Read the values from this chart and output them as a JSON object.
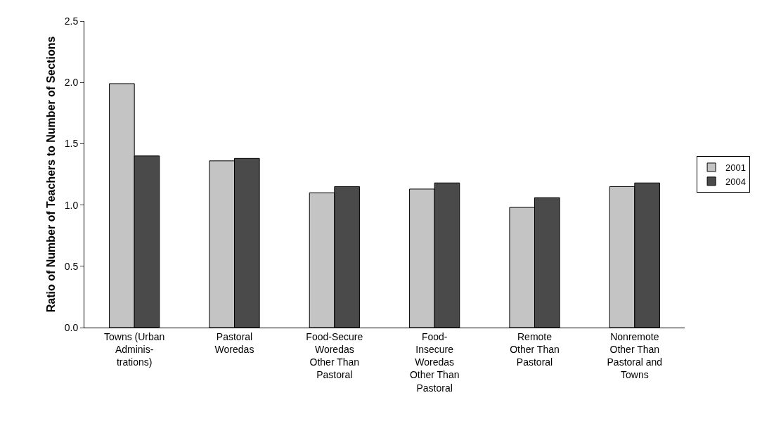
{
  "chart_data": {
    "type": "bar",
    "ylabel": "Ratio of Number of Teachers to Number of Sections",
    "categories": [
      "Towns (Urban\nAdminis-\ntrations)",
      "Pastoral\nWoredas",
      "Food-Secure\nWoredas\nOther Than\nPastoral",
      "Food-\nInsecure\nWoredas\nOther Than\nPastoral",
      "Remote\nOther Than\nPastoral",
      "Nonremote\nOther Than\nPastoral and\nTowns"
    ],
    "series": [
      {
        "name": "2001",
        "color": "#c4c4c4",
        "values": [
          1.99,
          1.36,
          1.1,
          1.13,
          0.98,
          1.15
        ]
      },
      {
        "name": "2004",
        "color": "#4a4a4a",
        "values": [
          1.4,
          1.38,
          1.15,
          1.18,
          1.06,
          1.18
        ]
      }
    ],
    "ylim": [
      0,
      2.5
    ],
    "yticks": [
      {
        "value": 0,
        "label": "0.0"
      },
      {
        "value": 0.5,
        "label": "0.5"
      },
      {
        "value": 1,
        "label": "1.0"
      },
      {
        "value": 1.5,
        "label": "1.5"
      },
      {
        "value": 2,
        "label": "2.0"
      },
      {
        "value": 2.5,
        "label": "2.5"
      }
    ],
    "grid": false,
    "legend": "right"
  }
}
